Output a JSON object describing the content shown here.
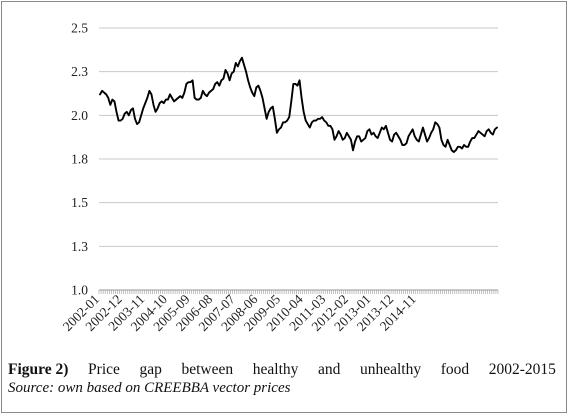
{
  "chart_data": {
    "type": "line",
    "title": "",
    "xlabel": "",
    "ylabel": "",
    "ylim": [
      1.0,
      2.5
    ],
    "yticks": [
      "2.5",
      "2.3",
      "2.0",
      "1.8",
      "1.5",
      "1.3",
      "1.0"
    ],
    "ytick_values": [
      2.5,
      2.25,
      2.0,
      1.75,
      1.5,
      1.25,
      1.0
    ],
    "xticks": [
      "2002-01",
      "2002-12",
      "2003-11",
      "2004-10",
      "2005-09",
      "2006-08",
      "2007-07",
      "2008-06",
      "2009-05",
      "2010-04",
      "2011-03",
      "2012-02",
      "2013-01",
      "2013-12",
      "2014-11"
    ],
    "grid": "horizontal",
    "line_color": "#000000",
    "start": "2002-01",
    "series": [
      {
        "values": [
          2.12,
          2.14,
          2.13,
          2.12,
          2.1,
          2.06,
          2.09,
          2.08,
          2.02,
          1.97,
          1.97,
          1.98,
          2.01,
          2.02,
          2.0,
          2.03,
          2.04,
          1.98,
          1.95,
          1.96,
          2.0,
          2.04,
          2.07,
          2.1,
          2.14,
          2.12,
          2.06,
          2.02,
          2.04,
          2.07,
          2.08,
          2.07,
          2.09,
          2.09,
          2.12,
          2.1,
          2.08,
          2.09,
          2.1,
          2.11,
          2.1,
          2.13,
          2.18,
          2.19,
          2.19,
          2.2,
          2.1,
          2.09,
          2.09,
          2.1,
          2.14,
          2.12,
          2.11,
          2.13,
          2.14,
          2.15,
          2.18,
          2.19,
          2.17,
          2.2,
          2.21,
          2.26,
          2.24,
          2.2,
          2.24,
          2.25,
          2.3,
          2.28,
          2.31,
          2.33,
          2.29,
          2.25,
          2.2,
          2.16,
          2.13,
          2.11,
          2.16,
          2.17,
          2.14,
          2.1,
          2.04,
          1.98,
          2.02,
          2.04,
          2.05,
          1.98,
          1.9,
          1.92,
          1.93,
          1.96,
          1.96,
          1.97,
          1.99,
          2.08,
          2.18,
          2.18,
          2.17,
          2.2,
          2.1,
          2.02,
          1.97,
          1.95,
          1.93,
          1.96,
          1.97,
          1.97,
          1.98,
          1.98,
          1.99,
          1.97,
          1.96,
          1.94,
          1.94,
          1.92,
          1.86,
          1.88,
          1.91,
          1.89,
          1.86,
          1.87,
          1.9,
          1.88,
          1.86,
          1.8,
          1.85,
          1.88,
          1.88,
          1.85,
          1.86,
          1.87,
          1.91,
          1.92,
          1.89,
          1.9,
          1.88,
          1.87,
          1.9,
          1.93,
          1.92,
          1.94,
          1.9,
          1.86,
          1.85,
          1.89,
          1.9,
          1.88,
          1.86,
          1.83,
          1.83,
          1.84,
          1.88,
          1.9,
          1.92,
          1.88,
          1.86,
          1.85,
          1.89,
          1.93,
          1.89,
          1.85,
          1.87,
          1.9,
          1.92,
          1.96,
          1.95,
          1.93,
          1.86,
          1.83,
          1.82,
          1.86,
          1.83,
          1.8,
          1.79,
          1.8,
          1.82,
          1.82,
          1.81,
          1.83,
          1.82,
          1.82,
          1.85,
          1.87,
          1.87,
          1.89,
          1.91,
          1.9,
          1.89,
          1.88,
          1.91,
          1.92,
          1.9,
          1.89,
          1.92,
          1.93
        ]
      }
    ]
  },
  "caption": {
    "figure_label": "Figure 2)",
    "words": [
      "Price",
      "gap",
      "between",
      "healthy",
      "and",
      "unhealthy",
      "food",
      "2002-2015"
    ],
    "source": "Source: own based on CREEBBA vector prices"
  }
}
